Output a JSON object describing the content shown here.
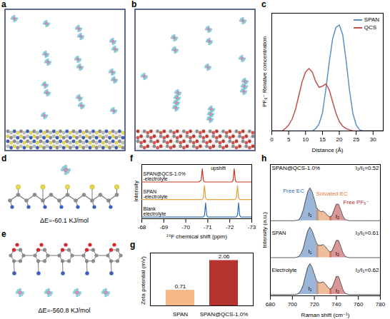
{
  "images": [
    {
      "panel": "a"
    },
    {
      "panel": "b"
    },
    {
      "panel": "d",
      "caption": "ΔE=-60.1 KJ/mol"
    },
    {
      "panel": "e",
      "caption": "ΔE=-560.8 KJ/mol"
    }
  ],
  "chart_data": [
    {
      "panel": "c",
      "type": "line",
      "xlabel": "Distance (Å)",
      "ylabel": "PF₆⁻ Relative concentration",
      "x": [
        0,
        1,
        2,
        3,
        4,
        5,
        6,
        7,
        8,
        9,
        10,
        11,
        12,
        13,
        14,
        15,
        16,
        17,
        18,
        19,
        20,
        21,
        22,
        23,
        24,
        25,
        26,
        27,
        28,
        29,
        30,
        31,
        32,
        33
      ],
      "xlim": [
        0,
        33
      ],
      "xticks": [
        0,
        5,
        10,
        15,
        20,
        25,
        30
      ],
      "ylim": [
        0,
        1
      ],
      "tick_labels": "x",
      "legend": "top-right",
      "series": [
        {
          "name": "SPAN",
          "color": "#5b8fc9",
          "values": [
            0,
            0,
            0,
            0,
            0,
            0,
            0,
            0,
            0,
            0,
            0,
            0,
            0,
            0.02,
            0.06,
            0.15,
            0.35,
            0.58,
            0.78,
            0.88,
            0.9,
            0.82,
            0.6,
            0.35,
            0.15,
            0.05,
            0.01,
            0,
            0,
            0,
            0,
            0,
            0,
            0
          ]
        },
        {
          "name": "QCS",
          "color": "#c0504d",
          "values": [
            0,
            0,
            0,
            0,
            0.02,
            0.05,
            0.1,
            0.18,
            0.3,
            0.42,
            0.5,
            0.53,
            0.5,
            0.42,
            0.37,
            0.38,
            0.4,
            0.35,
            0.25,
            0.15,
            0.08,
            0.04,
            0.02,
            0.01,
            0,
            0,
            0,
            0,
            0,
            0,
            0,
            0,
            0,
            0
          ]
        }
      ]
    },
    {
      "panel": "f",
      "type": "line",
      "xlabel": "¹⁹F chemical shift (ppm)",
      "ylabel": "Intensity",
      "x": [
        -68,
        -69,
        -70,
        -70.6,
        -70.7,
        -70.75,
        -70.8,
        -70.85,
        -70.9,
        -70.95,
        -71,
        -71.1,
        -72,
        -72.1,
        -72.15,
        -72.2,
        -72.25,
        -72.3,
        -72.35,
        -72.4,
        -72.45,
        -72.5,
        -73
      ],
      "xlim": [
        -68,
        -73
      ],
      "xticks": [
        -68,
        -69,
        -70,
        -71,
        -72,
        -73
      ],
      "ylim": [
        0,
        3.1
      ],
      "tick_labels": "x",
      "annotations": [
        "upshift"
      ],
      "series": [
        {
          "name": "SPAN@QCS-1.0%-electrolyte",
          "color": "#c0392b",
          "values": [
            2.1,
            2.1,
            2.1,
            2.1,
            2.2,
            2.85,
            2.2,
            2.1,
            2.1,
            2.1,
            2.1,
            2.1,
            2.1,
            2.1,
            2.2,
            2.85,
            2.2,
            2.1,
            2.1,
            2.1,
            2.1,
            2.1,
            2.1
          ]
        },
        {
          "name": "SPAN-electrolyte",
          "color": "#e8a33d",
          "values": [
            1.1,
            1.1,
            1.1,
            1.1,
            1.1,
            1.1,
            1.2,
            1.9,
            1.2,
            1.1,
            1.1,
            1.1,
            1.1,
            1.1,
            1.1,
            1.1,
            1.1,
            1.2,
            1.9,
            1.2,
            1.1,
            1.1,
            1.1
          ]
        },
        {
          "name": "Blank electrolyte",
          "color": "#2e6fb5",
          "values": [
            0.1,
            0.1,
            0.1,
            0.1,
            0.1,
            0.1,
            0.1,
            0.2,
            0.9,
            0.2,
            0.1,
            0.1,
            0.1,
            0.1,
            0.1,
            0.1,
            0.1,
            0.1,
            0.2,
            0.9,
            0.2,
            0.1,
            0.1
          ]
        }
      ]
    },
    {
      "panel": "g",
      "type": "bar",
      "ylabel": "Zeta potential (mV)",
      "categories": [
        "SPAN",
        "SPAN@QCS-1.0%"
      ],
      "values": [
        0.71,
        2.06
      ],
      "colors": [
        "#f5b987",
        "#b5322f"
      ],
      "ylim": [
        0,
        2.4
      ],
      "tick_labels": "x",
      "data_labels": true
    },
    {
      "panel": "h",
      "type": "line",
      "xlabel": "Raman shift (cm⁻¹)",
      "ylabel": "Intensity (a.u.)",
      "x": [
        680,
        682,
        684,
        686,
        688,
        690,
        692,
        694,
        696,
        698,
        700,
        702,
        704,
        706,
        708,
        710,
        712,
        714,
        716,
        718,
        720,
        722,
        724,
        726,
        728,
        730,
        732,
        734,
        736,
        738,
        740,
        742,
        744,
        746,
        748,
        750,
        752,
        754,
        756,
        758,
        760,
        762,
        764,
        766,
        768,
        770,
        772,
        774,
        776,
        778,
        780
      ],
      "xlim": [
        680,
        780
      ],
      "xticks": [
        680,
        700,
        720,
        740,
        760,
        780
      ],
      "ylim": [
        0,
        3.2
      ],
      "tick_labels": "x",
      "components": [
        {
          "name": "Free EC",
          "color": "#3a6db5",
          "center": 716,
          "label": "I₁"
        },
        {
          "name": "Solvated EC",
          "color": "#e07b39",
          "center": 728
        },
        {
          "name": "Free PF₆⁻",
          "color": "#b8302f",
          "center": 741,
          "label": "I₂"
        }
      ],
      "series": [
        {
          "name": "SPAN@QCS-1.0%",
          "color": "#555555",
          "ratio_label": "I₂/I₁=0.52",
          "values": [
            1.83,
            1.83,
            1.83,
            1.83,
            1.83,
            1.83,
            1.83,
            1.83,
            1.83,
            1.83,
            1.83,
            1.83,
            1.84,
            1.85,
            1.94,
            2.09,
            2.32,
            2.53,
            2.63,
            2.53,
            2.35,
            2.15,
            2.08,
            2.05,
            2.06,
            2.02,
            1.96,
            1.92,
            1.95,
            2.09,
            2.23,
            2.23,
            2.09,
            1.94,
            1.86,
            1.84,
            1.83,
            1.83,
            1.83,
            1.83,
            1.83,
            1.83,
            1.83,
            1.83,
            1.83,
            1.83,
            1.83,
            1.83,
            1.83,
            1.83,
            1.83
          ]
        },
        {
          "name": "SPAN",
          "color": "#555555",
          "ratio_label": "I₂/I₁=0.61",
          "values": [
            0.93,
            0.93,
            0.93,
            0.93,
            0.93,
            0.93,
            0.93,
            0.93,
            0.93,
            0.93,
            0.93,
            0.93,
            0.94,
            0.96,
            1.03,
            1.16,
            1.38,
            1.58,
            1.67,
            1.58,
            1.43,
            1.28,
            1.23,
            1.23,
            1.25,
            1.2,
            1.13,
            1.07,
            1.09,
            1.21,
            1.35,
            1.35,
            1.2,
            1.05,
            0.96,
            0.94,
            0.93,
            0.93,
            0.93,
            0.93,
            0.93,
            0.93,
            0.93,
            0.93,
            0.93,
            0.93,
            0.93,
            0.93,
            0.93,
            0.93,
            0.93
          ]
        },
        {
          "name": "Electrolyte",
          "color": "#555555",
          "ratio_label": "I₂/I₁=0.62",
          "values": [
            0.03,
            0.03,
            0.03,
            0.03,
            0.03,
            0.03,
            0.03,
            0.03,
            0.03,
            0.03,
            0.03,
            0.03,
            0.04,
            0.06,
            0.14,
            0.27,
            0.49,
            0.69,
            0.78,
            0.69,
            0.53,
            0.37,
            0.32,
            0.32,
            0.34,
            0.29,
            0.22,
            0.16,
            0.19,
            0.32,
            0.47,
            0.47,
            0.31,
            0.15,
            0.06,
            0.04,
            0.03,
            0.03,
            0.03,
            0.03,
            0.03,
            0.03,
            0.03,
            0.03,
            0.03,
            0.03,
            0.03,
            0.03,
            0.03,
            0.03,
            0.03
          ]
        }
      ]
    }
  ]
}
